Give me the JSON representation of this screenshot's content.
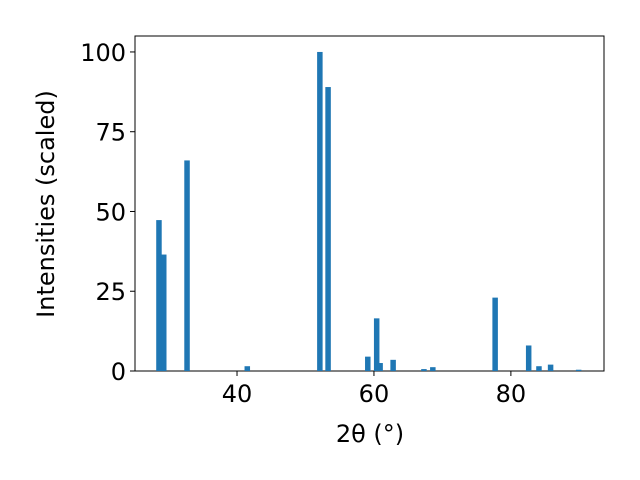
{
  "chart_data": {
    "type": "bar",
    "x": [
      28.6,
      29.3,
      32.7,
      41.5,
      52.1,
      53.3,
      59.1,
      60.4,
      60.9,
      62.8,
      67.3,
      68.6,
      77.7,
      82.6,
      84.1,
      85.8,
      89.9
    ],
    "values": [
      47.3,
      36.5,
      66,
      1.5,
      100,
      89,
      4.5,
      16.5,
      2.5,
      3.5,
      0.6,
      1.2,
      23,
      8,
      1.5,
      2,
      0.4
    ],
    "color": "#1f77b4",
    "xlabel": "2θ (°)",
    "ylabel": "Intensities (scaled)",
    "xlim": [
      25.1,
      93.6
    ],
    "ylim": [
      0,
      105
    ],
    "xticks": [
      40,
      60,
      80
    ],
    "yticks": [
      0,
      25,
      50,
      75,
      100
    ],
    "grid": false
  }
}
